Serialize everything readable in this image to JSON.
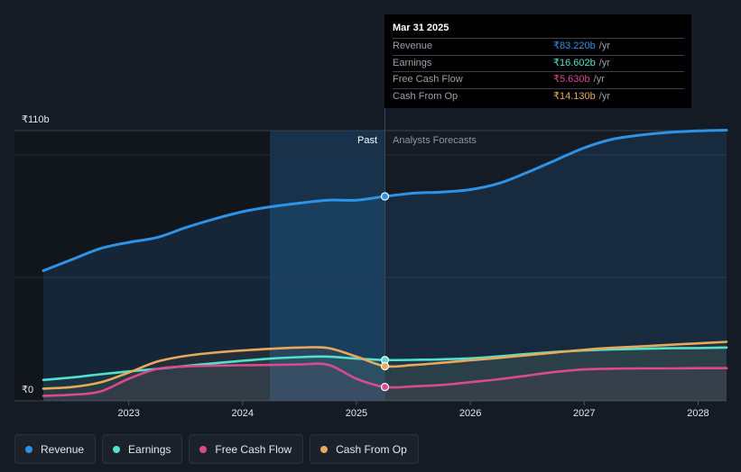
{
  "chart_data": {
    "type": "line",
    "currency": "₹",
    "y_top_label": "₹110b",
    "y_bottom_label": "₹0",
    "ylim": [
      0,
      110
    ],
    "xlim": [
      2022.25,
      2028.25
    ],
    "x_ticks": [
      2023,
      2024,
      2025,
      2026,
      2027,
      2028
    ],
    "x_tick_labels": [
      "2023",
      "2024",
      "2025",
      "2026",
      "2027",
      "2028"
    ],
    "divider_x": 2025.25,
    "past_label": "Past",
    "forecast_label": "Analysts Forecasts",
    "series": [
      {
        "name": "Revenue",
        "color": "#2e93e6",
        "x": [
          2022.25,
          2022.5,
          2022.75,
          2023.0,
          2023.25,
          2023.5,
          2023.75,
          2024.0,
          2024.25,
          2024.5,
          2024.75,
          2025.0,
          2025.25,
          2025.5,
          2025.75,
          2026.0,
          2026.25,
          2026.5,
          2026.75,
          2027.0,
          2027.25,
          2027.5,
          2027.75,
          2028.0,
          2028.25
        ],
        "values": [
          53,
          57.5,
          62,
          64.5,
          66.5,
          70.5,
          74,
          77,
          79,
          80.5,
          81.7,
          81.7,
          83.22,
          84.5,
          85,
          86,
          88.5,
          93,
          98,
          103,
          106.5,
          108.2,
          109.3,
          109.9,
          110.2
        ]
      },
      {
        "name": "Earnings",
        "color": "#53e0cc",
        "x": [
          2022.25,
          2022.5,
          2022.75,
          2023.0,
          2023.25,
          2023.5,
          2023.75,
          2024.0,
          2024.25,
          2024.5,
          2024.75,
          2025.0,
          2025.25,
          2025.5,
          2025.75,
          2026.0,
          2026.25,
          2026.5,
          2026.75,
          2027.0,
          2027.25,
          2027.5,
          2027.75,
          2028.0,
          2028.25
        ],
        "values": [
          8.5,
          9.5,
          10.8,
          12,
          13,
          14.2,
          15.3,
          16.3,
          17.2,
          17.8,
          18,
          17.2,
          16.602,
          16.7,
          16.9,
          17.3,
          18.1,
          19.1,
          19.9,
          20.5,
          20.9,
          21.2,
          21.4,
          21.5,
          21.7
        ]
      },
      {
        "name": "Free Cash Flow",
        "color": "#d94a8f",
        "x": [
          2022.25,
          2022.5,
          2022.75,
          2023.0,
          2023.25,
          2023.5,
          2023.75,
          2024.0,
          2024.25,
          2024.5,
          2024.75,
          2025.0,
          2025.25,
          2025.5,
          2025.75,
          2026.0,
          2026.25,
          2026.5,
          2026.75,
          2027.0,
          2027.25,
          2027.5,
          2027.75,
          2028.0,
          2028.25
        ],
        "values": [
          2,
          2.5,
          3.8,
          9,
          13,
          14,
          14.3,
          14.5,
          14.6,
          14.8,
          14.7,
          9,
          5.63,
          5.9,
          6.5,
          7.6,
          8.8,
          10.3,
          11.8,
          12.8,
          13.1,
          13.2,
          13.2,
          13.3,
          13.3
        ]
      },
      {
        "name": "Cash From Op",
        "color": "#e8a95c",
        "x": [
          2022.25,
          2022.5,
          2022.75,
          2023.0,
          2023.25,
          2023.5,
          2023.75,
          2024.0,
          2024.25,
          2024.5,
          2024.75,
          2025.0,
          2025.25,
          2025.5,
          2025.75,
          2026.0,
          2026.25,
          2026.5,
          2026.75,
          2027.0,
          2027.25,
          2027.5,
          2027.75,
          2028.0,
          2028.25
        ],
        "values": [
          5,
          5.6,
          7.5,
          11.5,
          16,
          18.3,
          19.6,
          20.5,
          21.2,
          21.7,
          21.5,
          18,
          14.13,
          14.6,
          15.5,
          16.5,
          17.5,
          18.6,
          19.7,
          20.8,
          21.6,
          22.2,
          22.8,
          23.4,
          24
        ]
      }
    ]
  },
  "tooltip": {
    "date": "Mar 31 2025",
    "unit": "/yr",
    "rows": [
      {
        "label": "Revenue",
        "value": "₹83.220b",
        "color": "#2e93e6"
      },
      {
        "label": "Earnings",
        "value": "₹16.602b",
        "color": "#53e0cc"
      },
      {
        "label": "Free Cash Flow",
        "value": "₹5.630b",
        "color": "#d94a8f"
      },
      {
        "label": "Cash From Op",
        "value": "₹14.130b",
        "color": "#e8a95c"
      }
    ]
  },
  "legend": [
    {
      "label": "Revenue",
      "color": "#2e93e6"
    },
    {
      "label": "Earnings",
      "color": "#53e0cc"
    },
    {
      "label": "Free Cash Flow",
      "color": "#d94a8f"
    },
    {
      "label": "Cash From Op",
      "color": "#e8a95c"
    }
  ]
}
